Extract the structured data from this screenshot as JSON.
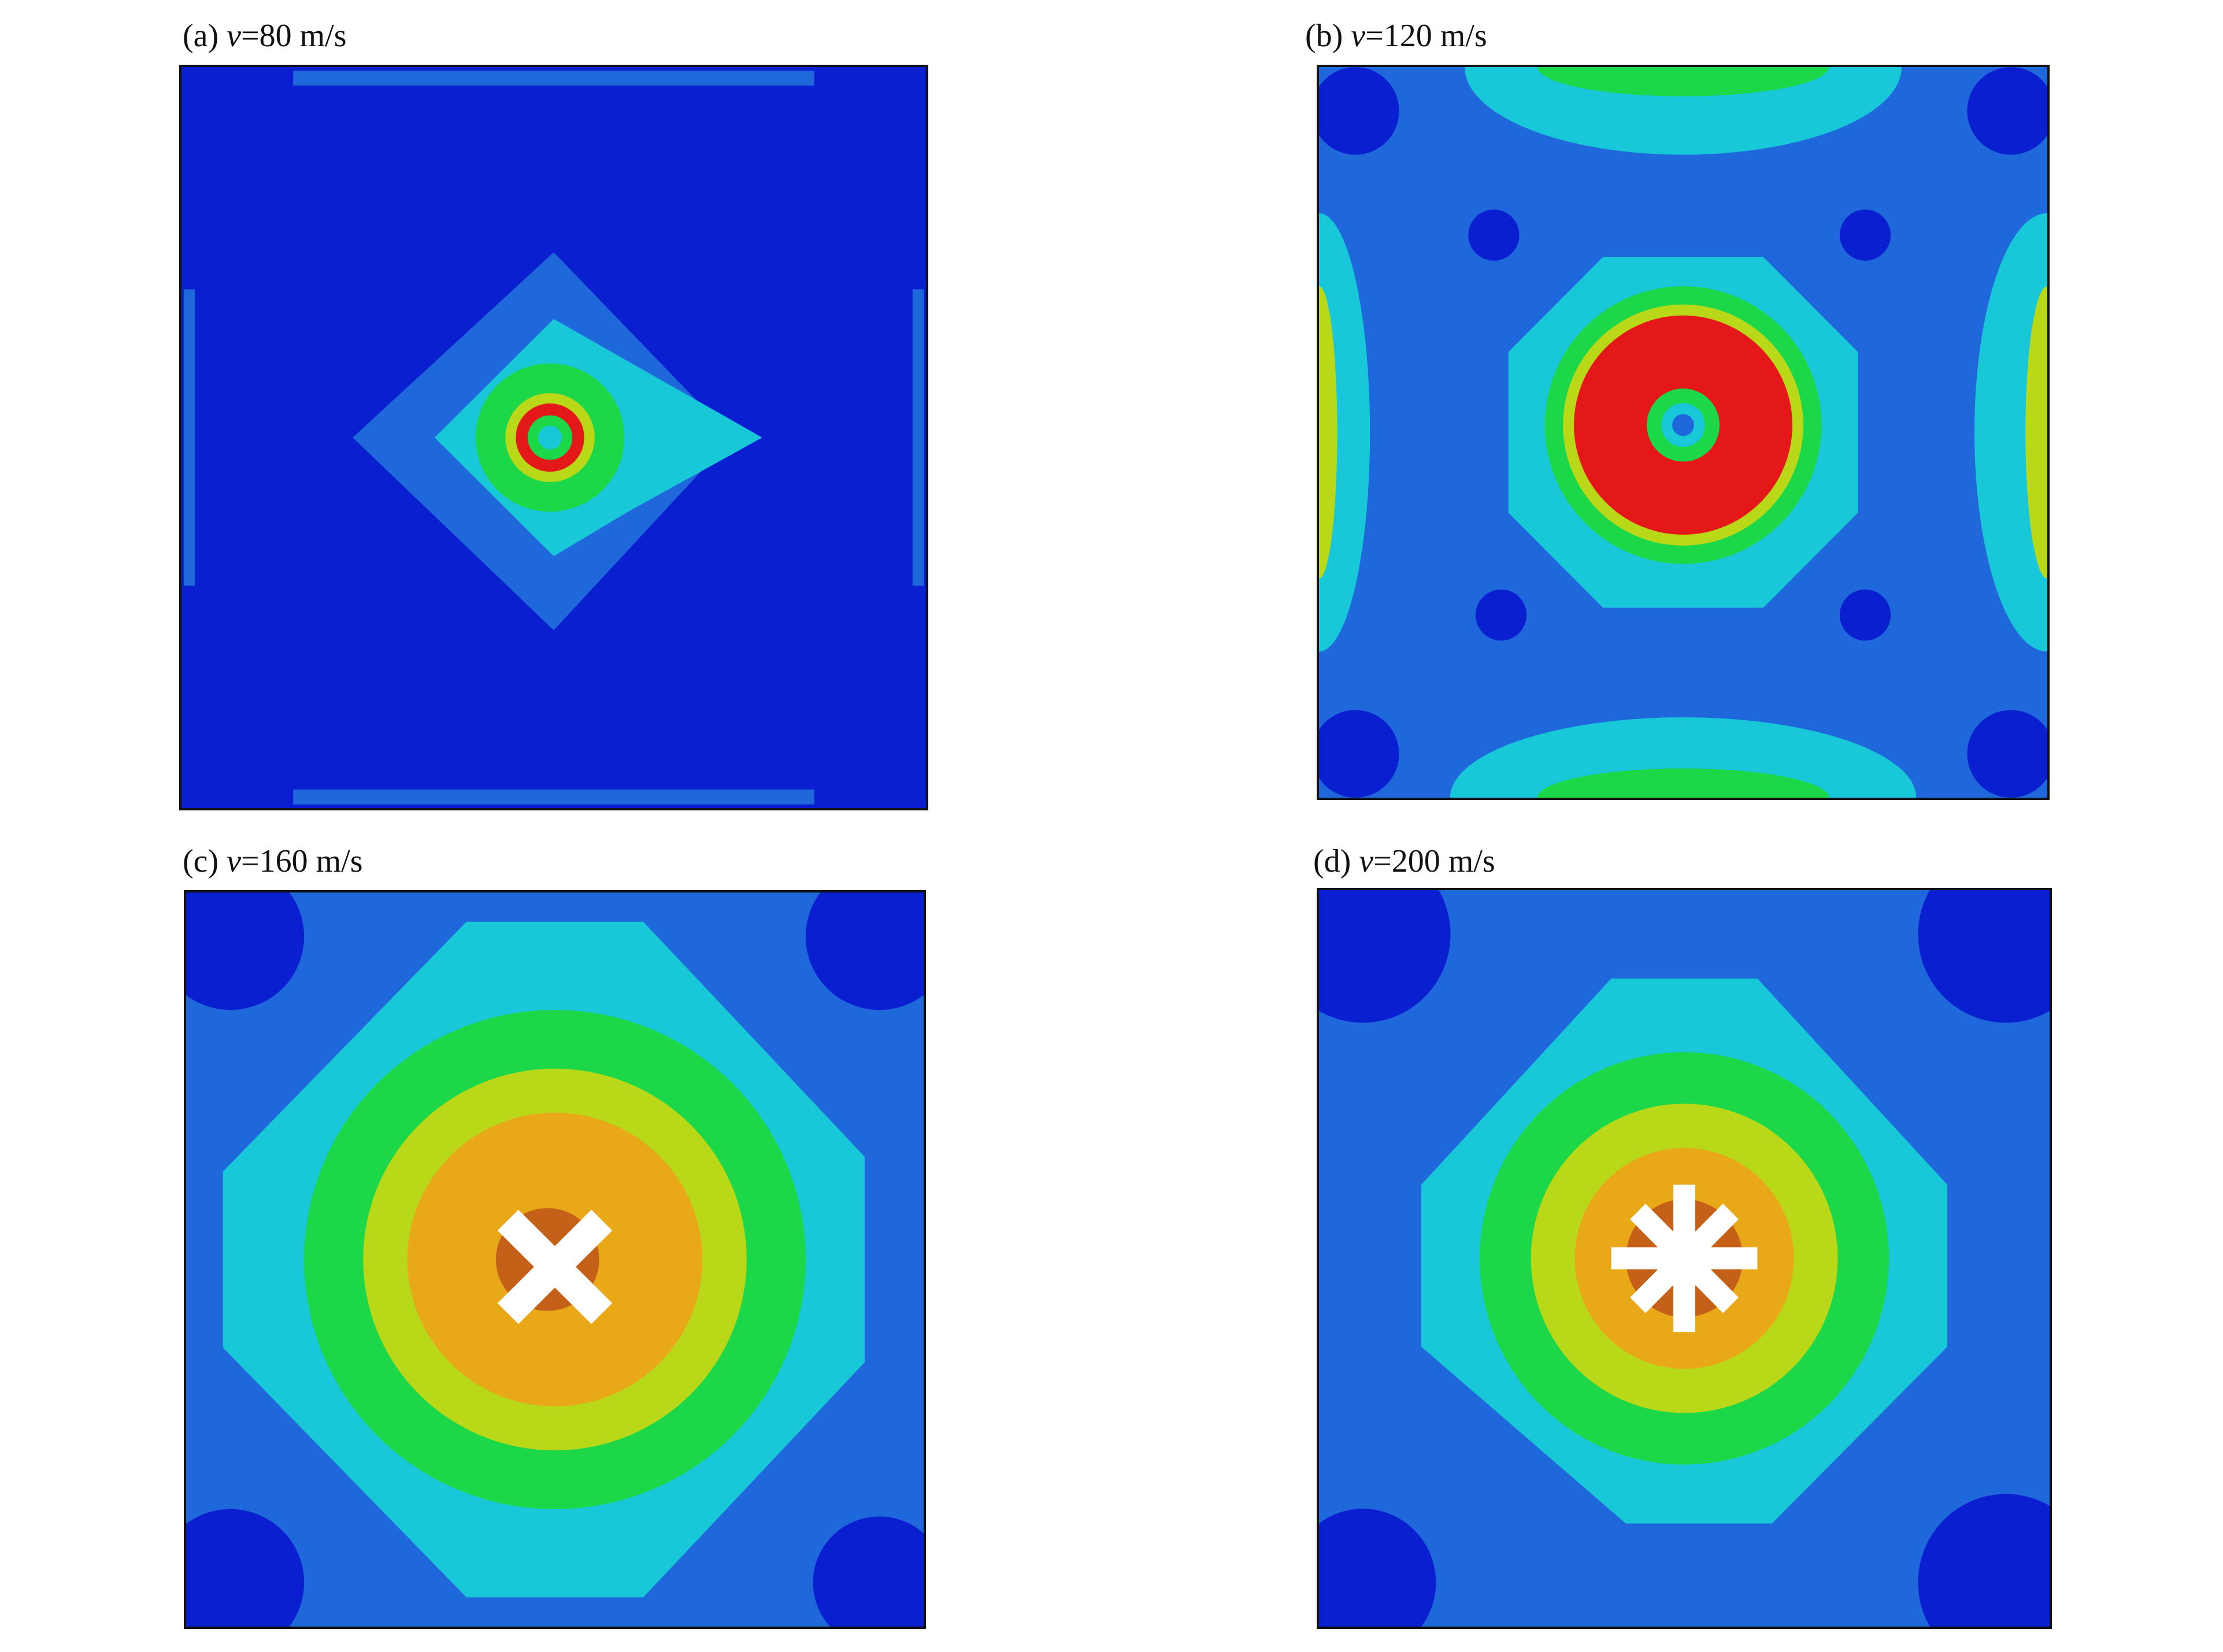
{
  "panels": [
    {
      "id": "a",
      "label": "(a)",
      "var": "v",
      "value": "=80 m/s"
    },
    {
      "id": "b",
      "label": "(b)",
      "var": "v",
      "value": "=120 m/s"
    },
    {
      "id": "c",
      "label": "(c)",
      "var": "v",
      "value": "=160 m/s"
    },
    {
      "id": "d",
      "label": "(d)",
      "var": "v",
      "value": "=200 m/s"
    }
  ],
  "colors": {
    "deep_blue": "#0a1fd0",
    "mid_blue": "#1f68dc",
    "cyan": "#18c8d8",
    "green": "#1cd848",
    "yellow_green": "#b8d818",
    "orange": "#e8a818",
    "red": "#e41818",
    "fracture_white": "#ffffff"
  }
}
